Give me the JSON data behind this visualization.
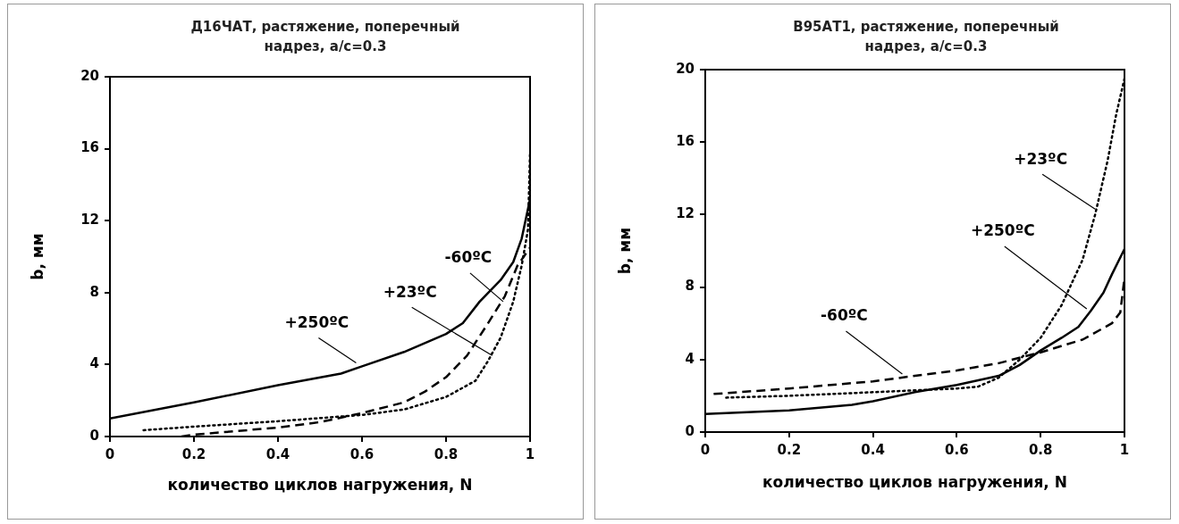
{
  "chart_data": [
    {
      "type": "line",
      "title": "Д16ЧАТ, растяжение, поперечный надрез, a/c=0.3",
      "xlabel": "количество циклов нагружения, N",
      "ylabel": "b, мм",
      "xlim": [
        0,
        1
      ],
      "xticks": [
        0,
        0.2,
        0.4,
        0.6,
        0.8,
        1
      ],
      "ylim": [
        0,
        20
      ],
      "yticks": [
        0,
        4,
        8,
        12,
        16,
        20
      ],
      "grid": false,
      "legend": false,
      "marker": "none",
      "series": [
        {
          "color": "#000000",
          "line_style": "solid",
          "x": [
            0,
            0.2,
            0.4,
            0.55,
            0.6,
            0.7,
            0.8,
            0.84,
            0.88,
            0.93,
            0.96,
            0.98,
            1
          ],
          "values": [
            1,
            1.9,
            2.85,
            3.5,
            3.9,
            4.7,
            5.7,
            6.3,
            7.5,
            8.7,
            9.7,
            11,
            13.2
          ]
        },
        {
          "color": "#000000",
          "line_style": "dotted",
          "x": [
            0.08,
            0.2,
            0.4,
            0.6,
            0.7,
            0.8,
            0.87,
            0.9,
            0.93,
            0.96,
            0.98,
            0.995,
            1
          ],
          "values": [
            0.35,
            0.55,
            0.85,
            1.2,
            1.5,
            2.2,
            3.1,
            4.2,
            5.5,
            7.5,
            9.5,
            11.5,
            15.8
          ]
        },
        {
          "color": "#000000",
          "line_style": "dashed",
          "x": [
            0.17,
            0.2,
            0.3,
            0.4,
            0.5,
            0.6,
            0.7,
            0.75,
            0.8,
            0.85,
            0.9,
            0.94,
            0.97,
            1
          ],
          "values": [
            0,
            0.1,
            0.3,
            0.5,
            0.8,
            1.3,
            1.9,
            2.5,
            3.3,
            4.5,
            6.3,
            7.8,
            9.5,
            10.5
          ]
        }
      ],
      "annotations": [
        {
          "text": "+250ºC",
          "x": 0.586,
          "y": 4.1
        },
        {
          "text": "+23ºC",
          "x": 0.91,
          "y": 4.5
        },
        {
          "text": "-60ºC",
          "x": 0.936,
          "y": 7.5
        }
      ]
    },
    {
      "type": "line",
      "title": "В95АТ1, растяжение, поперечный надрез, a/c=0.3",
      "xlabel": "количество циклов нагружения, N",
      "ylabel": "b, мм",
      "xlim": [
        0,
        1
      ],
      "xticks": [
        0,
        0.2,
        0.4,
        0.6,
        0.8,
        1
      ],
      "ylim": [
        0,
        20
      ],
      "yticks": [
        0,
        4,
        8,
        12,
        16,
        20
      ],
      "grid": false,
      "legend": false,
      "marker": "none",
      "series": [
        {
          "color": "#000000",
          "line_style": "solid",
          "x": [
            0,
            0.2,
            0.35,
            0.4,
            0.5,
            0.6,
            0.7,
            0.75,
            0.8,
            0.85,
            0.89,
            0.92,
            0.95,
            0.97,
            1
          ],
          "values": [
            1,
            1.2,
            1.5,
            1.7,
            2.2,
            2.6,
            3.1,
            3.7,
            4.5,
            5.2,
            5.8,
            6.7,
            7.7,
            8.7,
            10.1
          ]
        },
        {
          "color": "#000000",
          "line_style": "dotted",
          "x": [
            0.05,
            0.2,
            0.4,
            0.6,
            0.65,
            0.7,
            0.75,
            0.8,
            0.85,
            0.9,
            0.93,
            0.96,
            0.98,
            1
          ],
          "values": [
            1.9,
            2,
            2.2,
            2.4,
            2.5,
            3,
            4,
            5.2,
            7,
            9.5,
            12,
            15,
            17.5,
            19.5
          ]
        },
        {
          "color": "#000000",
          "line_style": "dashed",
          "x": [
            0.02,
            0.2,
            0.4,
            0.5,
            0.6,
            0.7,
            0.8,
            0.9,
            0.97,
            0.99,
            1
          ],
          "values": [
            2.1,
            2.4,
            2.8,
            3.1,
            3.4,
            3.8,
            4.4,
            5.1,
            6,
            6.6,
            8.5
          ]
        }
      ],
      "annotations": [
        {
          "text": "+23ºC",
          "x": 0.93,
          "y": 12.3
        },
        {
          "text": "+250ºC",
          "x": 0.91,
          "y": 6.8
        },
        {
          "text": "-60ºC",
          "x": 0.47,
          "y": 3.2
        }
      ]
    }
  ]
}
